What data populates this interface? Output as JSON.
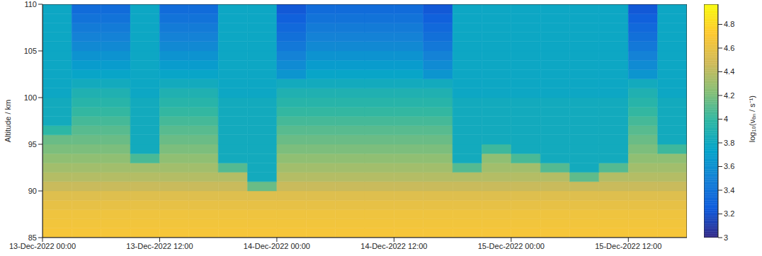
{
  "chart_data": {
    "type": "heatmap",
    "ylabel": "Altitude / km",
    "colorbar_label": "log₁₀(νₑₙ / s⁻¹)",
    "xlim": [
      0,
      66
    ],
    "xticks": [
      {
        "value": 0,
        "label": "13-Dec-2022 00:00"
      },
      {
        "value": 12,
        "label": "13-Dec-2022 12:00"
      },
      {
        "value": 24,
        "label": "14-Dec-2022 00:00"
      },
      {
        "value": 36,
        "label": "14-Dec-2022 12:00"
      },
      {
        "value": 48,
        "label": "15-Dec-2022 00:00"
      },
      {
        "value": 60,
        "label": "15-Dec-2022 12:00"
      }
    ],
    "ylim": [
      85,
      110
    ],
    "yticks": [
      85,
      90,
      95,
      100,
      105,
      110
    ],
    "colorbar_lim": [
      3,
      4.97
    ],
    "colorbar_ticks": [
      3,
      3.2,
      3.4,
      3.6,
      3.8,
      4,
      4.2,
      4.4,
      4.6,
      4.8
    ],
    "x": [
      1.5,
      4.5,
      7.5,
      10.5,
      13.5,
      16.5,
      19.5,
      22.5,
      25.5,
      28.5,
      31.5,
      34.5,
      37.5,
      40.5,
      43.5,
      46.5,
      49.5,
      52.5,
      55.5,
      58.5,
      61.5,
      64.5
    ],
    "y": [
      85.5,
      86.5,
      87.5,
      88.5,
      89.5,
      90.5,
      91.5,
      92.5,
      93.5,
      94.5,
      95.5,
      96.5,
      97.5,
      98.5,
      99.5,
      100.5,
      101.5,
      102.5,
      103.5,
      104.5,
      105.5,
      106.5,
      107.5,
      108.5,
      109.5
    ],
    "cells": [
      [
        4.68,
        4.68,
        4.68,
        4.68,
        4.68,
        4.68,
        4.68,
        4.68,
        4.68,
        4.68,
        4.68,
        4.68,
        4.68,
        4.68,
        4.68,
        4.68,
        4.68,
        4.68,
        4.68,
        4.68,
        4.68,
        4.68
      ],
      [
        4.66,
        4.66,
        4.66,
        4.66,
        4.66,
        4.66,
        4.66,
        4.66,
        4.66,
        4.66,
        4.66,
        4.66,
        4.66,
        4.66,
        4.66,
        4.66,
        4.66,
        4.66,
        4.66,
        4.66,
        4.66,
        4.66
      ],
      [
        4.64,
        4.64,
        4.64,
        4.64,
        4.64,
        4.64,
        4.64,
        4.64,
        4.64,
        4.64,
        4.64,
        4.64,
        4.64,
        4.64,
        4.64,
        4.64,
        4.64,
        4.64,
        4.64,
        4.64,
        4.64,
        4.64
      ],
      [
        4.6,
        4.6,
        4.6,
        4.6,
        4.6,
        4.6,
        4.6,
        4.6,
        4.6,
        4.6,
        4.6,
        4.6,
        4.6,
        4.6,
        4.6,
        4.6,
        4.6,
        4.6,
        4.6,
        4.6,
        4.6,
        4.6
      ],
      [
        4.55,
        4.55,
        4.55,
        4.55,
        4.55,
        4.55,
        4.55,
        4.55,
        4.55,
        4.55,
        4.55,
        4.55,
        4.55,
        4.55,
        4.55,
        4.55,
        4.55,
        4.55,
        4.55,
        4.55,
        4.55,
        4.55
      ],
      [
        4.45,
        4.45,
        4.45,
        4.45,
        4.45,
        4.45,
        4.45,
        4.15,
        4.45,
        4.45,
        4.45,
        4.45,
        4.45,
        4.45,
        4.45,
        4.45,
        4.45,
        4.45,
        4.45,
        4.45,
        4.45,
        4.45
      ],
      [
        4.38,
        4.38,
        4.38,
        4.38,
        4.38,
        4.38,
        4.38,
        3.82,
        4.38,
        4.38,
        4.38,
        4.38,
        4.38,
        4.38,
        4.38,
        4.38,
        4.38,
        4.38,
        4.12,
        4.38,
        4.38,
        4.38
      ],
      [
        4.32,
        4.32,
        4.32,
        4.32,
        4.32,
        4.32,
        4.09,
        3.82,
        4.32,
        4.32,
        4.32,
        4.32,
        4.32,
        4.32,
        4.09,
        4.32,
        4.32,
        4.09,
        3.82,
        4.09,
        4.32,
        4.32
      ],
      [
        4.26,
        4.26,
        4.26,
        4.06,
        4.26,
        4.26,
        3.82,
        3.82,
        4.26,
        4.26,
        4.26,
        4.26,
        4.26,
        4.26,
        3.82,
        4.26,
        4.06,
        3.82,
        3.82,
        3.82,
        4.26,
        4.26
      ],
      [
        4.2,
        4.2,
        4.2,
        3.82,
        4.2,
        4.2,
        3.82,
        3.82,
        4.2,
        4.2,
        4.2,
        4.2,
        4.2,
        4.2,
        3.82,
        4.03,
        3.82,
        3.82,
        3.82,
        3.82,
        4.2,
        4.03
      ],
      [
        4.15,
        4.15,
        4.15,
        3.82,
        4.15,
        4.15,
        3.82,
        3.82,
        4.15,
        4.15,
        4.15,
        4.15,
        4.15,
        4.15,
        3.82,
        3.82,
        3.82,
        3.82,
        3.82,
        3.82,
        4.15,
        3.82
      ],
      [
        3.98,
        4.1,
        4.1,
        3.82,
        4.1,
        4.1,
        3.82,
        3.82,
        4.1,
        4.1,
        4.1,
        4.1,
        4.1,
        4.1,
        3.82,
        3.82,
        3.82,
        3.82,
        3.82,
        3.82,
        4.1,
        3.82
      ],
      [
        3.82,
        4.05,
        4.05,
        3.82,
        4.05,
        4.05,
        3.82,
        3.82,
        4.05,
        4.05,
        4.05,
        4.05,
        4.05,
        4.05,
        3.82,
        3.82,
        3.82,
        3.82,
        3.82,
        3.82,
        4.05,
        3.82
      ],
      [
        3.82,
        4.0,
        4.0,
        3.82,
        4.0,
        4.0,
        3.82,
        3.82,
        4.0,
        4.0,
        4.0,
        4.0,
        4.0,
        4.0,
        3.82,
        3.82,
        3.82,
        3.82,
        3.82,
        3.82,
        4.0,
        3.82
      ],
      [
        3.82,
        3.95,
        3.95,
        3.82,
        3.95,
        3.95,
        3.82,
        3.82,
        3.95,
        3.95,
        3.95,
        3.95,
        3.95,
        3.95,
        3.82,
        3.82,
        3.82,
        3.82,
        3.82,
        3.82,
        3.95,
        3.82
      ],
      [
        3.78,
        3.9,
        3.9,
        3.78,
        3.9,
        3.9,
        3.78,
        3.78,
        3.9,
        3.9,
        3.9,
        3.9,
        3.9,
        3.9,
        3.78,
        3.78,
        3.78,
        3.78,
        3.78,
        3.78,
        3.9,
        3.78
      ],
      [
        3.78,
        3.82,
        3.82,
        3.78,
        3.82,
        3.82,
        3.78,
        3.78,
        3.82,
        3.82,
        3.82,
        3.82,
        3.82,
        3.82,
        3.78,
        3.78,
        3.78,
        3.78,
        3.78,
        3.78,
        3.82,
        3.78
      ],
      [
        3.78,
        3.75,
        3.75,
        3.78,
        3.75,
        3.75,
        3.78,
        3.78,
        3.63,
        3.75,
        3.75,
        3.75,
        3.75,
        3.63,
        3.78,
        3.78,
        3.78,
        3.78,
        3.78,
        3.78,
        3.63,
        3.78
      ],
      [
        3.78,
        3.68,
        3.68,
        3.78,
        3.68,
        3.68,
        3.78,
        3.78,
        3.56,
        3.68,
        3.68,
        3.68,
        3.68,
        3.56,
        3.78,
        3.78,
        3.78,
        3.78,
        3.78,
        3.78,
        3.56,
        3.78
      ],
      [
        3.78,
        3.62,
        3.62,
        3.78,
        3.62,
        3.62,
        3.78,
        3.78,
        3.5,
        3.62,
        3.62,
        3.62,
        3.62,
        3.5,
        3.78,
        3.78,
        3.78,
        3.78,
        3.78,
        3.78,
        3.5,
        3.78
      ],
      [
        3.78,
        3.55,
        3.55,
        3.78,
        3.55,
        3.55,
        3.78,
        3.78,
        3.43,
        3.55,
        3.55,
        3.55,
        3.55,
        3.43,
        3.78,
        3.78,
        3.78,
        3.78,
        3.78,
        3.78,
        3.43,
        3.78
      ],
      [
        3.78,
        3.5,
        3.5,
        3.78,
        3.5,
        3.5,
        3.78,
        3.78,
        3.38,
        3.5,
        3.5,
        3.5,
        3.5,
        3.38,
        3.78,
        3.78,
        3.78,
        3.78,
        3.78,
        3.78,
        3.38,
        3.78
      ],
      [
        3.78,
        3.45,
        3.45,
        3.78,
        3.45,
        3.45,
        3.78,
        3.78,
        3.33,
        3.45,
        3.45,
        3.45,
        3.45,
        3.33,
        3.78,
        3.78,
        3.78,
        3.78,
        3.78,
        3.78,
        3.33,
        3.78
      ],
      [
        3.78,
        3.4,
        3.4,
        3.78,
        3.4,
        3.4,
        3.78,
        3.78,
        3.28,
        3.4,
        3.4,
        3.4,
        3.4,
        3.28,
        3.78,
        3.78,
        3.78,
        3.78,
        3.78,
        3.78,
        3.28,
        3.78
      ],
      [
        3.78,
        3.35,
        3.35,
        3.78,
        3.35,
        3.35,
        3.78,
        3.78,
        3.23,
        3.35,
        3.35,
        3.35,
        3.35,
        3.23,
        3.78,
        3.78,
        3.78,
        3.78,
        3.78,
        3.78,
        3.23,
        3.78
      ]
    ]
  }
}
